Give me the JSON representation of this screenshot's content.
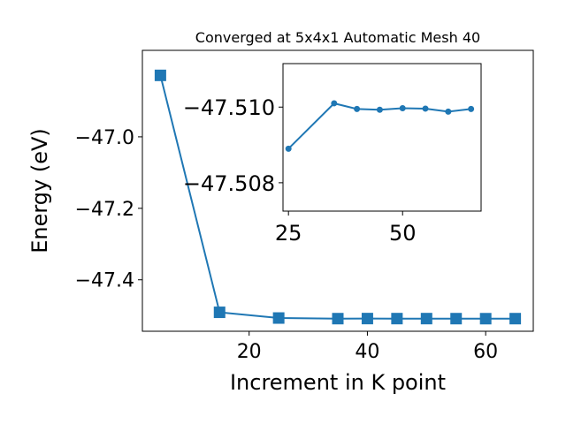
{
  "chart_data": [
    {
      "type": "line",
      "title": "Converged at 5x4x1 Automatic Mesh 40",
      "xlabel": "Increment in K point",
      "ylabel": "Energy (eV)",
      "xlim": [
        1.95,
        68.05
      ],
      "ylim": [
        -47.544,
        -46.758
      ],
      "x_ticks": [
        20,
        40,
        60
      ],
      "y_ticks": [
        -47.4,
        -47.2,
        -47.0
      ],
      "x_tick_labels": [
        "20",
        "40",
        "60"
      ],
      "y_tick_labels": [
        "−47.4",
        "−47.2",
        "−47.0"
      ],
      "marker": "square",
      "color": "#1f77b4",
      "grid": false,
      "series": [
        {
          "x": [
            5,
            15,
            25,
            35,
            40,
            45,
            50,
            55,
            60,
            65
          ],
          "y": [
            -46.828,
            -47.491,
            -47.507,
            -47.5087,
            -47.5085,
            -47.5086,
            -47.5086,
            -47.5087,
            -47.5088,
            -47.5087
          ]
        }
      ]
    },
    {
      "type": "line",
      "title": "",
      "xlabel": "",
      "ylabel": "",
      "xlim": [
        23.8,
        67.2
      ],
      "ylim": [
        -47.50725,
        -47.51115
      ],
      "x_ticks": [
        25,
        50
      ],
      "y_ticks": [
        -47.508,
        -47.51
      ],
      "x_tick_labels": [
        "25",
        "50"
      ],
      "y_tick_labels": [
        "−47.508",
        "−47.510"
      ],
      "marker": "circle",
      "color": "#1f77b4",
      "grid": false,
      "series": [
        {
          "x": [
            25,
            35,
            40,
            45,
            50,
            55,
            60,
            65
          ],
          "y": [
            -47.5089,
            -47.5101,
            -47.50995,
            -47.50993,
            -47.50997,
            -47.50996,
            -47.50988,
            -47.50995
          ]
        }
      ]
    }
  ]
}
